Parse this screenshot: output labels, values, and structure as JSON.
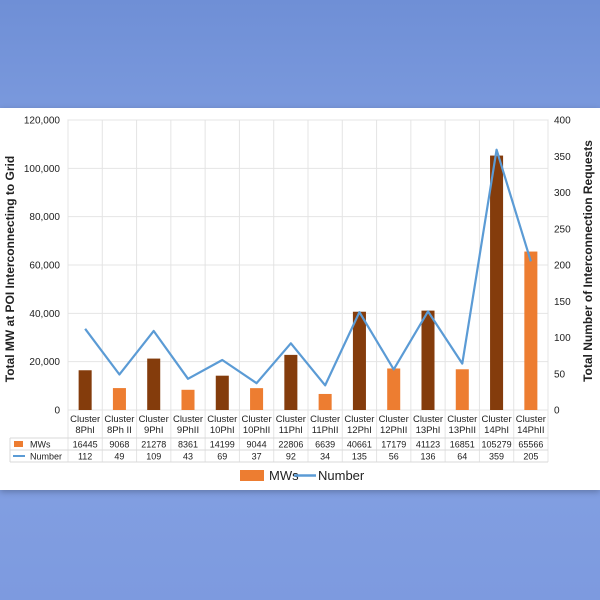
{
  "chart_data": {
    "type": "bar",
    "categories": [
      [
        "Cluster",
        "8PhI"
      ],
      [
        "Cluster",
        "8Ph II"
      ],
      [
        "Cluster",
        "9PhI"
      ],
      [
        "Cluster",
        "9PhII"
      ],
      [
        "Cluster",
        "10PhI"
      ],
      [
        "Cluster",
        "10PhII"
      ],
      [
        "Cluster",
        "11PhI"
      ],
      [
        "Cluster",
        "11PhII"
      ],
      [
        "Cluster",
        "12PhI"
      ],
      [
        "Cluster",
        "12PhII"
      ],
      [
        "Cluster",
        "13PhI"
      ],
      [
        "Cluster",
        "13PhII"
      ],
      [
        "Cluster",
        "14PhI"
      ],
      [
        "Cluster",
        "14PhII"
      ]
    ],
    "series": [
      {
        "name": "MWs",
        "type": "bar",
        "axis": "left",
        "values": [
          16445,
          9068,
          21278,
          8361,
          14199,
          9044,
          22806,
          6639,
          40661,
          17179,
          41123,
          16851,
          105279,
          65566
        ]
      },
      {
        "name": "Number",
        "type": "line",
        "axis": "right",
        "values": [
          112,
          49,
          109,
          43,
          69,
          37,
          92,
          34,
          135,
          56,
          136,
          64,
          359,
          205
        ]
      }
    ],
    "ylabel": "Total MW at POI Interconnecting to Grid",
    "y2label": "Total Number of Interconnection Requests",
    "ylim": [
      0,
      120000
    ],
    "y2lim": [
      0,
      400
    ],
    "yticks": [
      "0",
      "20,000",
      "40,000",
      "60,000",
      "80,000",
      "100,000",
      "120,000"
    ],
    "y2ticks": [
      "0",
      "50",
      "100",
      "150",
      "200",
      "250",
      "300",
      "350",
      "400"
    ],
    "grid": true,
    "data_table": true,
    "legend_position": "bottom",
    "colors": {
      "bar_phase1": "#843c0c",
      "bar_phase2": "#ed7d31",
      "line": "#5b9bd5",
      "legend_bar": "#ed7d31"
    }
  }
}
